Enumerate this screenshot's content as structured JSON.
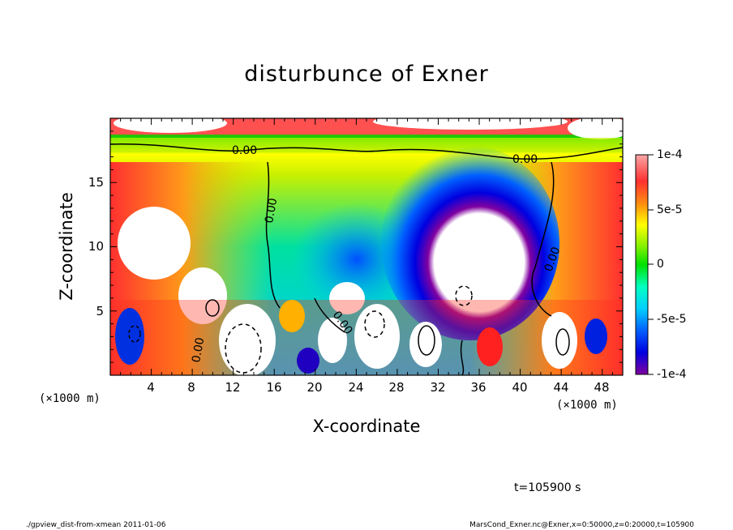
{
  "chart_data": {
    "type": "heatmap",
    "title": "disturbunce of Exner",
    "xlabel": "X-coordinate",
    "ylabel": "Z-coordinate",
    "x_unit": "(×1000 m)",
    "y_unit": "(×1000 m)",
    "x_ticks": [
      "4",
      "8",
      "12",
      "16",
      "20",
      "24",
      "28",
      "32",
      "36",
      "40",
      "44",
      "48"
    ],
    "y_ticks": [
      "5",
      "10",
      "15"
    ],
    "xlim": [
      0,
      50
    ],
    "ylim": [
      0,
      20
    ],
    "colorbar": {
      "range": [
        -0.0001,
        0.0001
      ],
      "labels": [
        "1e-4",
        "5e-5",
        "0",
        "-5e-5",
        "-1e-4"
      ],
      "colors": [
        "#f9a6a6",
        "#ff5a5a",
        "#ff2020",
        "#ff7a18",
        "#ffb000",
        "#ffff00",
        "#c8f000",
        "#00e000",
        "#00f0b0",
        "#00ffff",
        "#00b8ff",
        "#0060ff",
        "#0000e0",
        "#4000c0",
        "#8000a0"
      ]
    },
    "contour_labels": [
      "0.00",
      "0.00",
      "0.00",
      "0.00",
      "0.00",
      "0.00"
    ],
    "footer_time": "t=105900 s",
    "footer_left": "./gpview_dist-from-xmean   2011-01-06",
    "footer_right": "MarsCond_Exner.nc@Exner,x=0:50000,z=0:20000,t=105900"
  }
}
